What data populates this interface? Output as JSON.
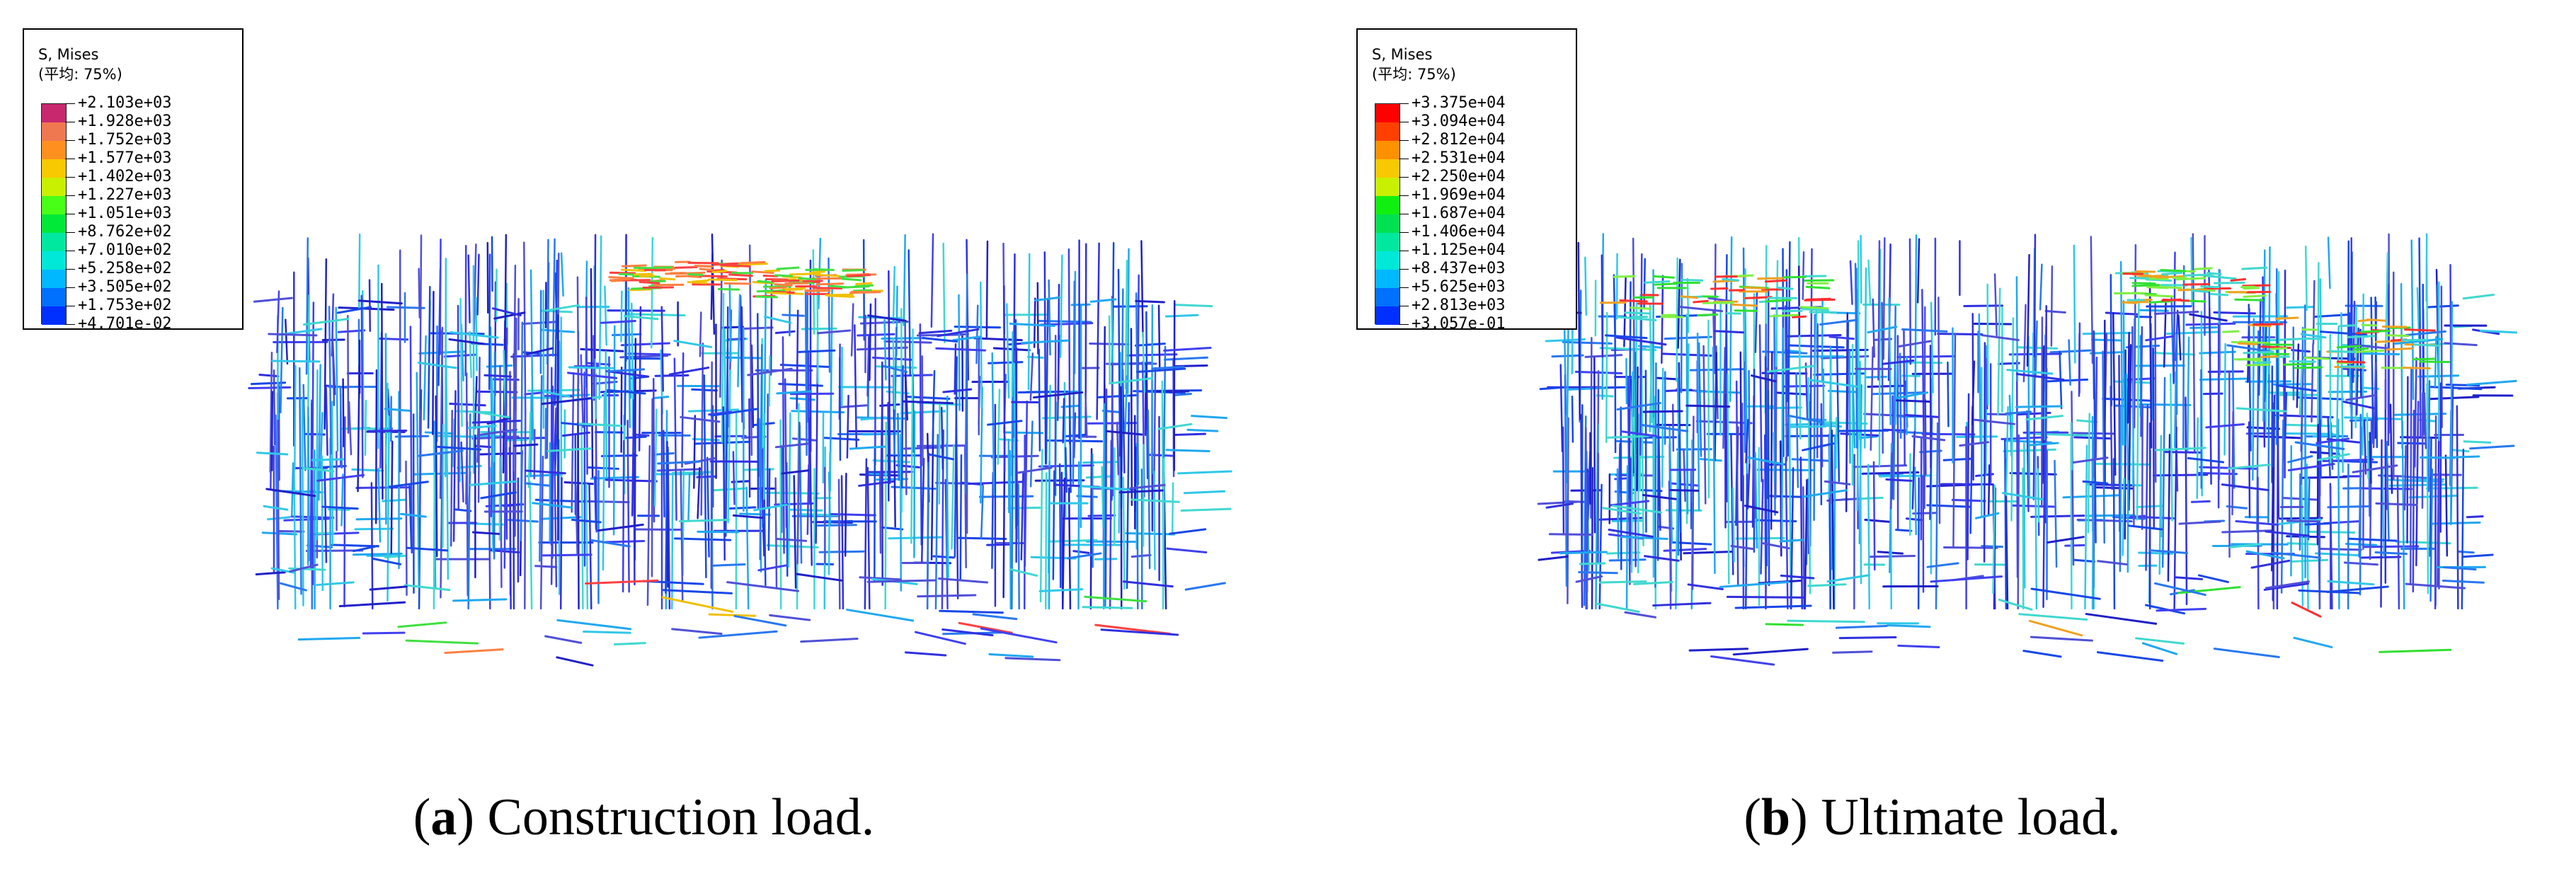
{
  "panels": [
    {
      "id": "a",
      "legend": {
        "title": "S, Mises",
        "avg": "(平均: 75%)",
        "values": [
          "+2.103e+03",
          "+1.928e+03",
          "+1.752e+03",
          "+1.577e+03",
          "+1.402e+03",
          "+1.227e+03",
          "+1.051e+03",
          "+8.762e+02",
          "+7.010e+02",
          "+5.258e+02",
          "+3.505e+02",
          "+1.753e+02",
          "+4.701e-02"
        ],
        "colors": [
          "#c8286e",
          "#f07850",
          "#ff9020",
          "#f8c800",
          "#c8f000",
          "#48ff18",
          "#00e838",
          "#00e8a0",
          "#00e8d8",
          "#00b8ff",
          "#0070ff",
          "#0030ff"
        ]
      },
      "caption": {
        "letter": "a",
        "text": "Construction load."
      }
    },
    {
      "id": "b",
      "legend": {
        "title": "S, Mises",
        "avg": "(平均: 75%)",
        "values": [
          "+3.375e+04",
          "+3.094e+04",
          "+2.812e+04",
          "+2.531e+04",
          "+2.250e+04",
          "+1.969e+04",
          "+1.687e+04",
          "+1.406e+04",
          "+1.125e+04",
          "+8.437e+03",
          "+5.625e+03",
          "+2.813e+03",
          "+3.057e-01"
        ],
        "colors": [
          "#ff0000",
          "#ff4000",
          "#ff9000",
          "#f8c800",
          "#c8f000",
          "#10f010",
          "#00e050",
          "#00e8a0",
          "#00e8d8",
          "#00b8ff",
          "#0070ff",
          "#0030ff"
        ]
      },
      "caption": {
        "letter": "b",
        "text": "Ultimate load."
      }
    }
  ]
}
